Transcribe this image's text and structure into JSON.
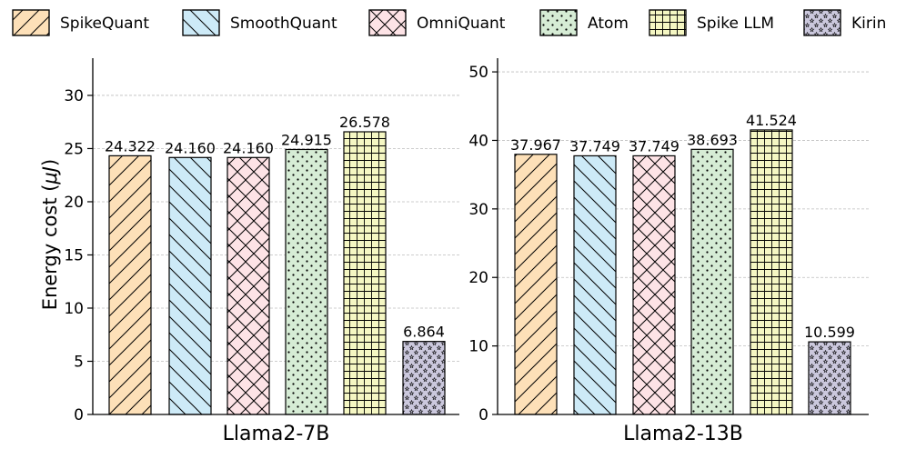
{
  "chart_data": {
    "type": "bar",
    "ylabel": "Energy cost (μJ)",
    "ylabel_plain": "Energy cost (",
    "ylabel_unit": "μJ",
    "ylabel_close": ")",
    "legend": {
      "placement": "top",
      "entries": [
        {
          "name": "SpikeQuant",
          "color": "#fde0b8",
          "hatch": "diag-fwd"
        },
        {
          "name": "SmoothQuant",
          "color": "#cdeaf7",
          "hatch": "diag-back"
        },
        {
          "name": "OmniQuant",
          "color": "#fde3e6",
          "hatch": "cross"
        },
        {
          "name": "Atom",
          "color": "#d6ecd5",
          "hatch": "dots"
        },
        {
          "name": "Spike LLM",
          "color": "#f5f7c3",
          "hatch": "grid"
        },
        {
          "name": "Kirin",
          "color": "#cbc8dd",
          "hatch": "stars"
        }
      ]
    },
    "panels": [
      {
        "title": "Llama2-7B",
        "ylim": [
          0,
          33.5
        ],
        "yticks": [
          0,
          5,
          10,
          15,
          20,
          25,
          30
        ],
        "grid": true,
        "values": [
          24.322,
          24.16,
          24.16,
          24.915,
          26.578,
          6.864
        ],
        "labels": [
          "24.322",
          "24.160",
          "24.160",
          "24.915",
          "26.578",
          "6.864"
        ]
      },
      {
        "title": "Llama2-13B",
        "ylim": [
          0,
          52
        ],
        "yticks": [
          0,
          10,
          20,
          30,
          40,
          50
        ],
        "grid": true,
        "values": [
          37.967,
          37.749,
          37.749,
          38.693,
          41.524,
          10.599
        ],
        "labels": [
          "37.967",
          "37.749",
          "37.749",
          "38.693",
          "41.524",
          "10.599"
        ]
      }
    ]
  }
}
